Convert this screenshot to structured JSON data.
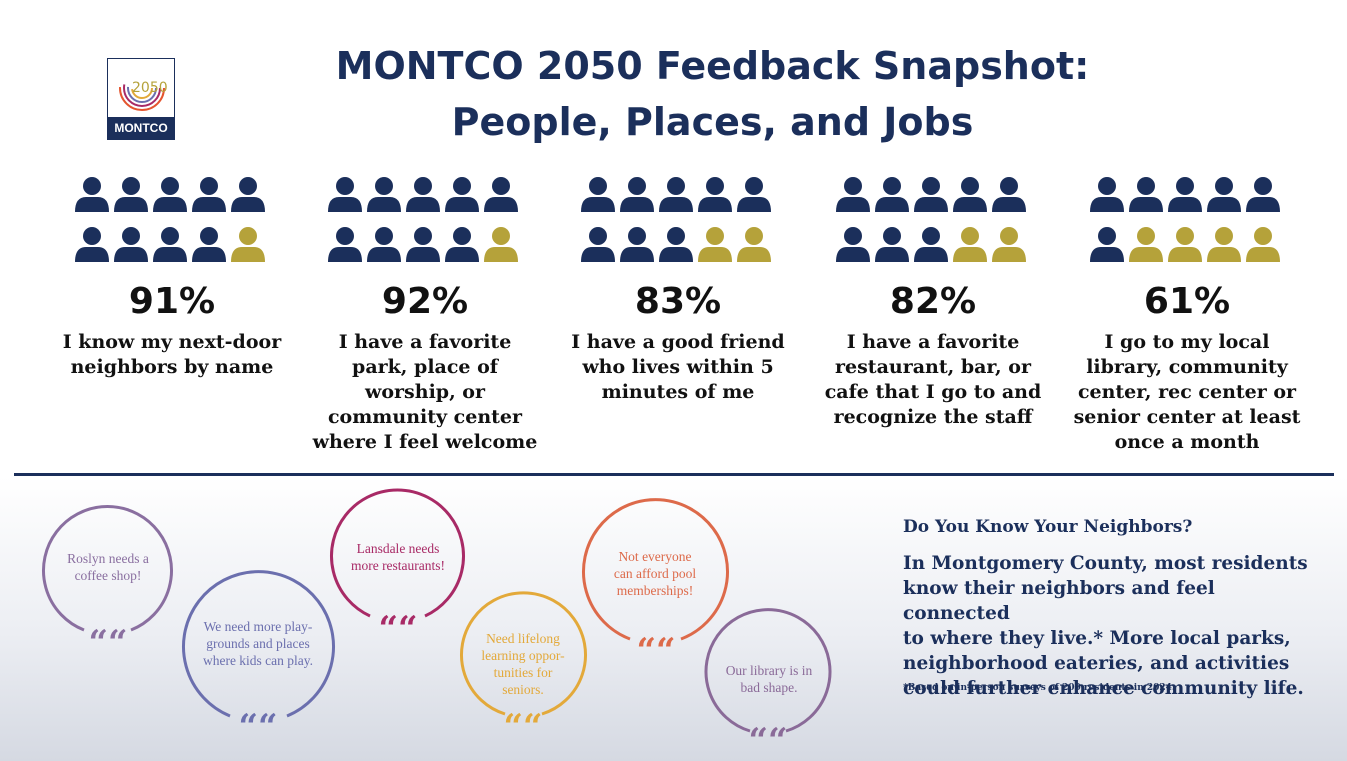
{
  "logo": {
    "year": "2050",
    "name": "MONTCO"
  },
  "title": {
    "line1": "MONTCO 2050 Feedback Snapshot:",
    "line2": "People, Places, and Jobs"
  },
  "colors": {
    "navy": "#1b2f5b",
    "gold": "#b5a23a"
  },
  "stats": [
    {
      "percent": "91%",
      "value": 91,
      "filled_icons": 9,
      "lines": [
        "I know my next-door",
        "neighbors by name"
      ]
    },
    {
      "percent": "92%",
      "value": 92,
      "filled_icons": 9,
      "lines": [
        "I have a favorite",
        "park, place of",
        "worship, or",
        "community center",
        "where I feel welcome"
      ]
    },
    {
      "percent": "83%",
      "value": 83,
      "filled_icons": 8,
      "lines": [
        "I have a good friend",
        "who lives within 5",
        "minutes of me"
      ]
    },
    {
      "percent": "82%",
      "value": 82,
      "filled_icons": 8,
      "lines": [
        "I have a favorite",
        "restaurant, bar, or",
        "cafe that I go to and",
        "recognize the staff"
      ]
    },
    {
      "percent": "61%",
      "value": 61,
      "filled_icons": 6,
      "lines": [
        "I go to my local",
        "library, community",
        "center, rec center or",
        "senior center at least",
        "once a month"
      ]
    }
  ],
  "quotes": [
    {
      "lines": [
        "Roslyn needs a",
        "coffee shop!"
      ],
      "color": "#8a6fa0"
    },
    {
      "lines": [
        "We need more play-",
        "grounds and places",
        "where kids can play."
      ],
      "color": "#6b6fae"
    },
    {
      "lines": [
        "Lansdale needs",
        "more restaurants!"
      ],
      "color": "#a82a66"
    },
    {
      "lines": [
        "Need lifelong",
        "learning oppor-",
        "tunities for",
        "seniors."
      ],
      "color": "#e3a93a"
    },
    {
      "lines": [
        "Not everyone",
        "can afford pool",
        "memberships!"
      ],
      "color": "#dd6a4a"
    },
    {
      "lines": [
        "Our library is in",
        "bad shape."
      ],
      "color": "#8a6a98"
    }
  ],
  "quote_mark": "“",
  "sidebar": {
    "heading": "Do You Know Your Neighbors?",
    "lines": [
      "In Montgomery County, most residents",
      "know their neighbors and feel connected",
      "to where they live.* More local parks,",
      "neighborhood eateries, and activities",
      "could further enhance community life."
    ],
    "footnote": "*Based on in-person surveys of 200 residents in 2024."
  }
}
